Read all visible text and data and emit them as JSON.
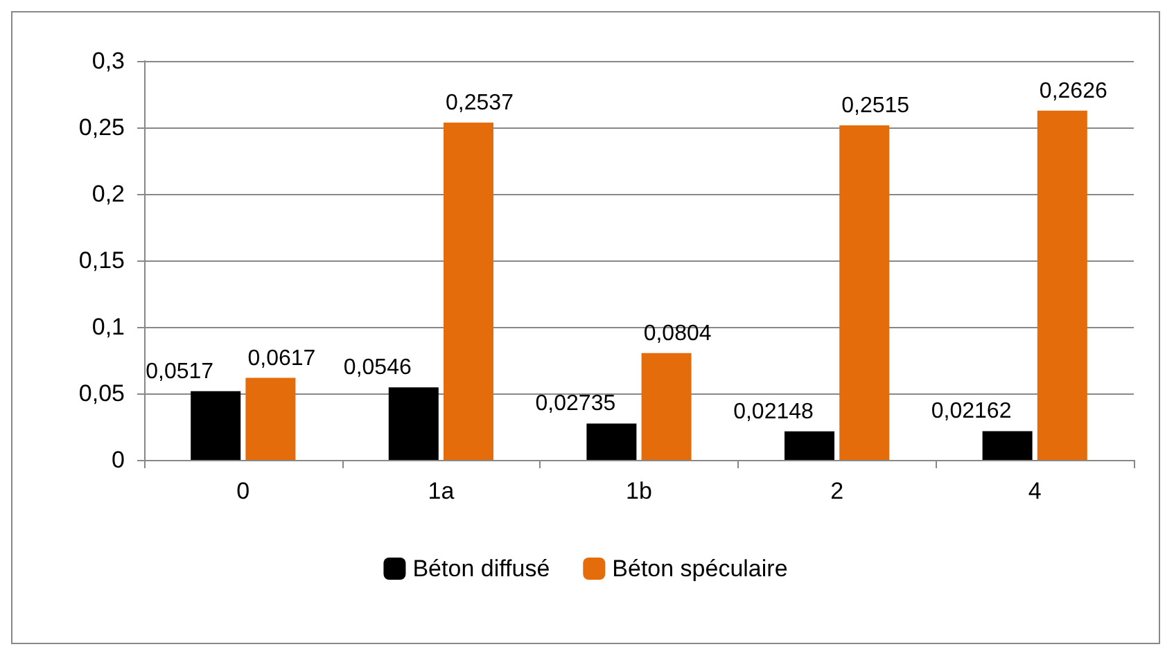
{
  "chart_data": {
    "type": "bar",
    "categories": [
      "0",
      "1a",
      "1b",
      "2",
      "4"
    ],
    "series": [
      {
        "name": "Béton diffusé",
        "color": "#000000",
        "values": [
          0.0517,
          0.0546,
          0.02735,
          0.02148,
          0.02162
        ],
        "value_labels": [
          "0,0517",
          "0,0546",
          "0,02735",
          "0,02148",
          "0,02162"
        ]
      },
      {
        "name": "Béton spéculaire",
        "color": "#e46c0a",
        "values": [
          0.0617,
          0.2537,
          0.0804,
          0.2515,
          0.2626
        ],
        "value_labels": [
          "0,0617",
          "0,2537",
          "0,0804",
          "0,2515",
          "0,2626"
        ]
      }
    ],
    "ylim": [
      0,
      0.3
    ],
    "yticks": [
      0,
      {
        "value": 0.05,
        "label": "0,05"
      },
      {
        "value": 0.1,
        "label": "0,1"
      },
      {
        "value": 0.15,
        "label": "0,15"
      },
      {
        "value": 0.2,
        "label": "0,2"
      },
      {
        "value": 0.25,
        "label": "0,25"
      },
      {
        "value": 0.3,
        "label": "0,3"
      }
    ],
    "grid": "y",
    "legend": "bottom"
  }
}
